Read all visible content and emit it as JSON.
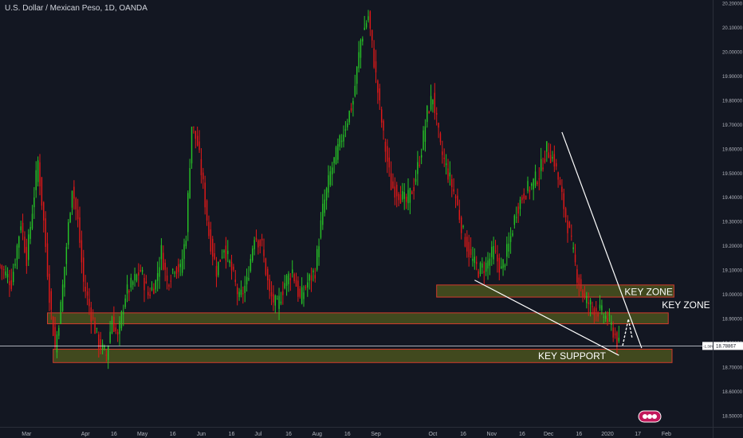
{
  "header": {
    "title": "U.S. Dollar / Mexican Peso, 1D, OANDA"
  },
  "colors": {
    "background": "#131722",
    "up": "#26c226",
    "down": "#e01818",
    "zone_fill": "#525b1e",
    "zone_stroke": "#d23b2c",
    "trendline": "#ffffff",
    "text": "#b2b5be"
  },
  "chart_data": {
    "type": "candlestick",
    "symbol": "USD/MXN",
    "interval": "1D",
    "y_ticks": [
      "20.20000",
      "20.10000",
      "20.00000",
      "19.90000",
      "19.80000",
      "19.70000",
      "19.60000",
      "19.50000",
      "19.40000",
      "19.30000",
      "19.20000",
      "19.10000",
      "19.00000",
      "18.90000",
      "18.80000",
      "18.70000",
      "18.60000",
      "18.50000"
    ],
    "y_tick_values": [
      20.2,
      20.1,
      20.0,
      19.9,
      19.8,
      19.7,
      19.6,
      19.5,
      19.4,
      19.3,
      19.2,
      19.1,
      19.0,
      18.9,
      18.8,
      18.7,
      18.6,
      18.5
    ],
    "ylim": [
      18.455,
      20.215
    ],
    "x_ticks": [
      "Mar",
      "Apr",
      "16",
      "May",
      "16",
      "Jun",
      "16",
      "Jul",
      "16",
      "Aug",
      "16",
      "Sep",
      "Oct",
      "16",
      "Nov",
      "16",
      "Dec",
      "16",
      "2020",
      "17",
      "Feb"
    ],
    "x_tick_days": [
      0,
      31,
      46,
      61,
      77,
      92,
      108,
      122,
      138,
      153,
      169,
      184,
      214,
      230,
      245,
      261,
      275,
      291,
      306,
      322,
      337
    ],
    "xlim": [
      -14,
      361
    ],
    "current_price": {
      "value": 18.78867,
      "label": "18.78867",
      "change": "-1.30%"
    },
    "path": [
      [
        -14,
        19.12
      ],
      [
        -8,
        19.05
      ],
      [
        -3,
        19.3
      ],
      [
        0,
        19.15
      ],
      [
        3,
        19.35
      ],
      [
        6,
        19.55
      ],
      [
        9,
        19.3
      ],
      [
        12,
        19.0
      ],
      [
        15,
        18.78
      ],
      [
        18,
        18.95
      ],
      [
        21,
        19.2
      ],
      [
        24,
        19.45
      ],
      [
        27,
        19.3
      ],
      [
        30,
        19.05
      ],
      [
        34,
        18.92
      ],
      [
        38,
        18.8
      ],
      [
        42,
        18.75
      ],
      [
        45,
        18.9
      ],
      [
        48,
        18.82
      ],
      [
        52,
        19.0
      ],
      [
        56,
        19.05
      ],
      [
        60,
        19.1
      ],
      [
        64,
        19.0
      ],
      [
        68,
        19.05
      ],
      [
        71,
        19.18
      ],
      [
        74,
        19.05
      ],
      [
        78,
        19.12
      ],
      [
        81,
        19.1
      ],
      [
        84,
        19.25
      ],
      [
        87,
        19.7
      ],
      [
        90,
        19.62
      ],
      [
        93,
        19.45
      ],
      [
        96,
        19.25
      ],
      [
        100,
        19.1
      ],
      [
        104,
        19.2
      ],
      [
        108,
        19.1
      ],
      [
        112,
        18.98
      ],
      [
        116,
        19.05
      ],
      [
        120,
        19.25
      ],
      [
        124,
        19.2
      ],
      [
        128,
        19.0
      ],
      [
        132,
        18.95
      ],
      [
        136,
        19.05
      ],
      [
        140,
        19.1
      ],
      [
        144,
        18.98
      ],
      [
        148,
        19.05
      ],
      [
        152,
        19.1
      ],
      [
        156,
        19.35
      ],
      [
        160,
        19.5
      ],
      [
        164,
        19.6
      ],
      [
        168,
        19.7
      ],
      [
        172,
        19.8
      ],
      [
        176,
        20.05
      ],
      [
        180,
        20.15
      ],
      [
        184,
        19.9
      ],
      [
        188,
        19.65
      ],
      [
        192,
        19.45
      ],
      [
        196,
        19.42
      ],
      [
        200,
        19.38
      ],
      [
        204,
        19.45
      ],
      [
        208,
        19.6
      ],
      [
        211,
        19.75
      ],
      [
        214,
        19.82
      ],
      [
        218,
        19.6
      ],
      [
        222,
        19.5
      ],
      [
        226,
        19.4
      ],
      [
        230,
        19.25
      ],
      [
        234,
        19.15
      ],
      [
        238,
        19.1
      ],
      [
        242,
        19.12
      ],
      [
        246,
        19.18
      ],
      [
        250,
        19.1
      ],
      [
        254,
        19.2
      ],
      [
        258,
        19.35
      ],
      [
        262,
        19.42
      ],
      [
        266,
        19.45
      ],
      [
        270,
        19.5
      ],
      [
        274,
        19.6
      ],
      [
        278,
        19.55
      ],
      [
        282,
        19.4
      ],
      [
        286,
        19.25
      ],
      [
        290,
        19.08
      ],
      [
        294,
        18.98
      ],
      [
        298,
        18.95
      ],
      [
        302,
        18.93
      ],
      [
        306,
        18.9
      ],
      [
        309,
        18.85
      ],
      [
        312,
        18.79
      ]
    ],
    "zones": [
      {
        "label": "KEY ZONE",
        "from_day": 216,
        "to_day": 341,
        "low": 18.99,
        "high": 19.04
      },
      {
        "label": "KEY ZONE",
        "from_day": 11,
        "to_day": 338,
        "low": 18.88,
        "high": 18.925
      },
      {
        "label": "KEY SUPPORT",
        "from_day": 14,
        "to_day": 340,
        "low": 18.72,
        "high": 18.775
      }
    ],
    "trendlines": [
      {
        "from": [
          236,
          19.06
        ],
        "to": [
          312,
          18.75
        ]
      },
      {
        "from": [
          282,
          19.67
        ],
        "to": [
          324,
          18.78
        ]
      }
    ],
    "projection": [
      [
        314,
        18.79
      ],
      [
        317,
        18.9
      ],
      [
        319,
        18.82
      ]
    ]
  }
}
